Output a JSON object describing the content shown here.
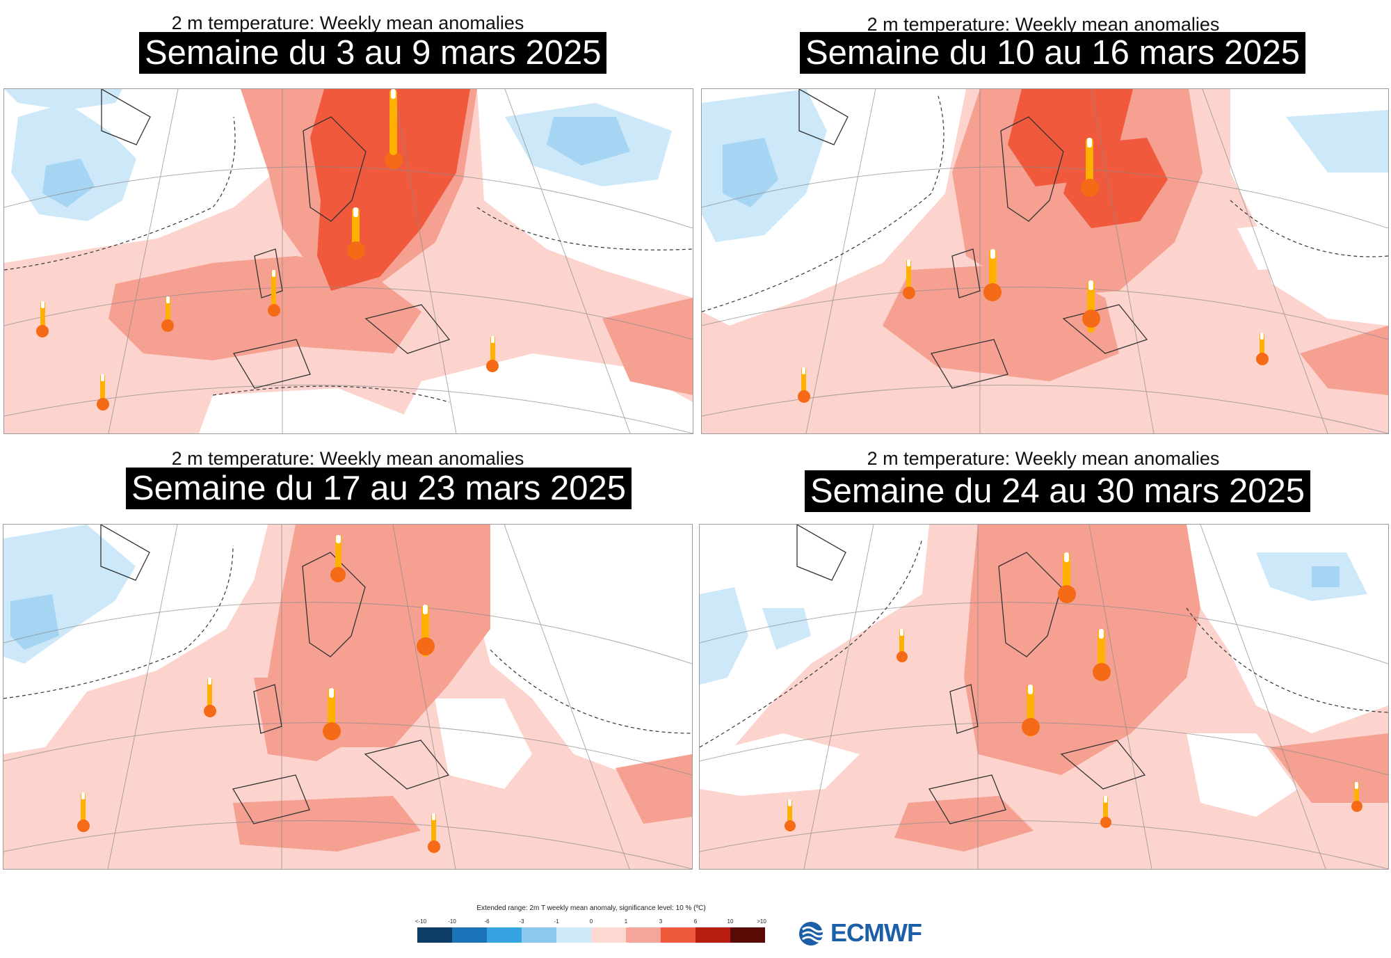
{
  "panels": [
    {
      "subtitle": "2 m temperature: Weekly mean anomalies",
      "title": "Semaine du 3 au 9 mars 2025"
    },
    {
      "subtitle": "2 m temperature: Weekly mean anomalies",
      "title": "Semaine du 10 au 16 mars 2025"
    },
    {
      "subtitle": "2 m temperature: Weekly mean anomalies",
      "title": "Semaine du 17 au 23 mars 2025"
    },
    {
      "subtitle": "2 m temperature: Weekly mean anomalies",
      "title": "Semaine du 24 au 30 mars 2025"
    }
  ],
  "legend": {
    "title": "Extended range: 2m T weekly mean anomaly, significance level: 10 % (ºC)",
    "ticks": [
      "<-10",
      "-10",
      "-6",
      "-3",
      "-1",
      "0",
      "1",
      "3",
      "6",
      "10",
      ">10"
    ],
    "colors": [
      "#0b3d66",
      "#1b74b8",
      "#35a3e0",
      "#8cc9ef",
      "#cde9f9",
      "#fcd8d3",
      "#f6a59a",
      "#f05a3c",
      "#b81d10",
      "#5a0a05"
    ]
  },
  "logo": {
    "text": "ECMWF"
  },
  "palette": {
    "light_red": "#fcd3cd",
    "medium_red": "#f5a091",
    "strong_red": "#f0593b",
    "light_blue": "#cde9f9",
    "medium_blue": "#a6d5f4",
    "white": "#ffffff",
    "thermometer_bulb": "#f56a16",
    "thermometer_stem": "#ffb000"
  }
}
